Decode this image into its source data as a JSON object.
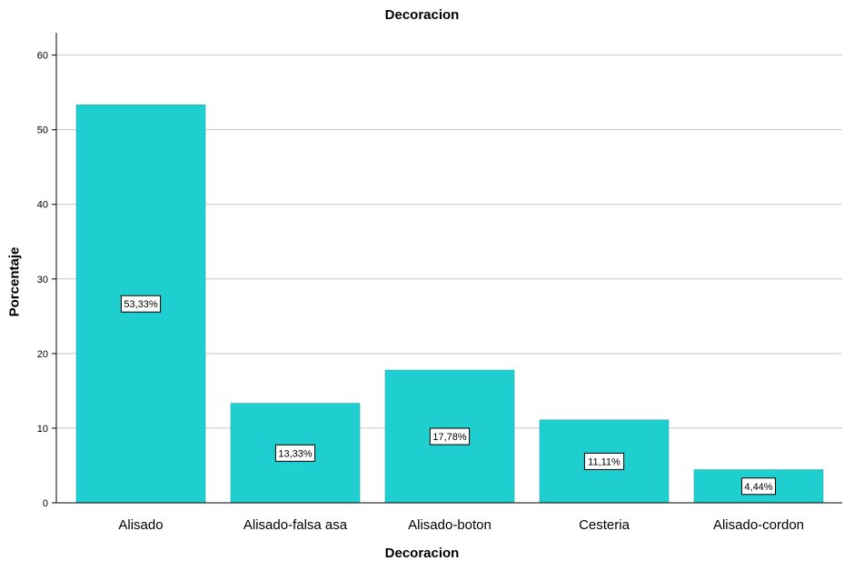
{
  "chart_data": {
    "type": "bar",
    "title": "Decoracion",
    "xlabel": "Decoracion",
    "ylabel": "Porcentaje",
    "categories": [
      "Alisado",
      "Alisado-falsa asa",
      "Alisado-boton",
      "Cesteria",
      "Alisado-cordon"
    ],
    "values": [
      53.33,
      13.33,
      17.78,
      11.11,
      4.44
    ],
    "data_labels": [
      "53,33%",
      "13,33%",
      "17,78%",
      "11,11%",
      "4,44%"
    ],
    "ylim": [
      0,
      63
    ],
    "yticks": [
      0,
      10,
      20,
      30,
      40,
      50,
      60
    ],
    "grid": true,
    "bar_color": "#1fcfcf",
    "bar_edge_color": "#20a8a8"
  }
}
